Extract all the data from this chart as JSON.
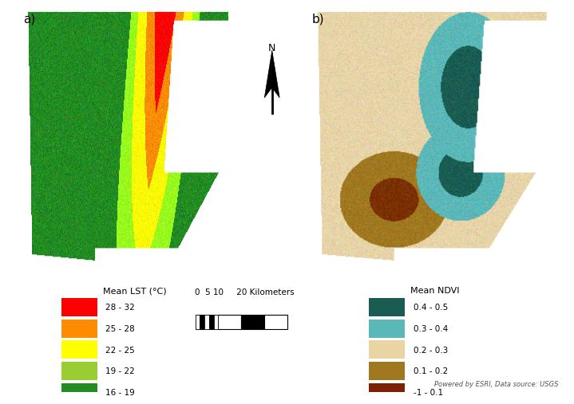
{
  "panel_a_label": "a)",
  "panel_b_label": "b)",
  "lst_legend_title": "Mean LST (°C)",
  "lst_legend_items": [
    {
      "label": "28 - 32",
      "color": "#FF0000"
    },
    {
      "label": "25 - 28",
      "color": "#FF8C00"
    },
    {
      "label": "22 - 25",
      "color": "#FFFF00"
    },
    {
      "label": "19 - 22",
      "color": "#9ACD32"
    },
    {
      "label": "16 - 19",
      "color": "#228B22"
    }
  ],
  "ndvi_legend_title": "Mean NDVI",
  "ndvi_legend_items": [
    {
      "label": "0.4 - 0.5",
      "color": "#1A5C52"
    },
    {
      "label": "0.3 - 0.4",
      "color": "#5BB8B8"
    },
    {
      "label": "0.2 - 0.3",
      "color": "#E8D5A3"
    },
    {
      "label": "0.1 - 0.2",
      "color": "#A07820"
    },
    {
      "label": "-1 - 0.1",
      "color": "#7B2000"
    }
  ],
  "attribution": "Powered by ESRI, Data source: USGS",
  "background_color": "#FFFFFF",
  "north_arrow_label": "N"
}
